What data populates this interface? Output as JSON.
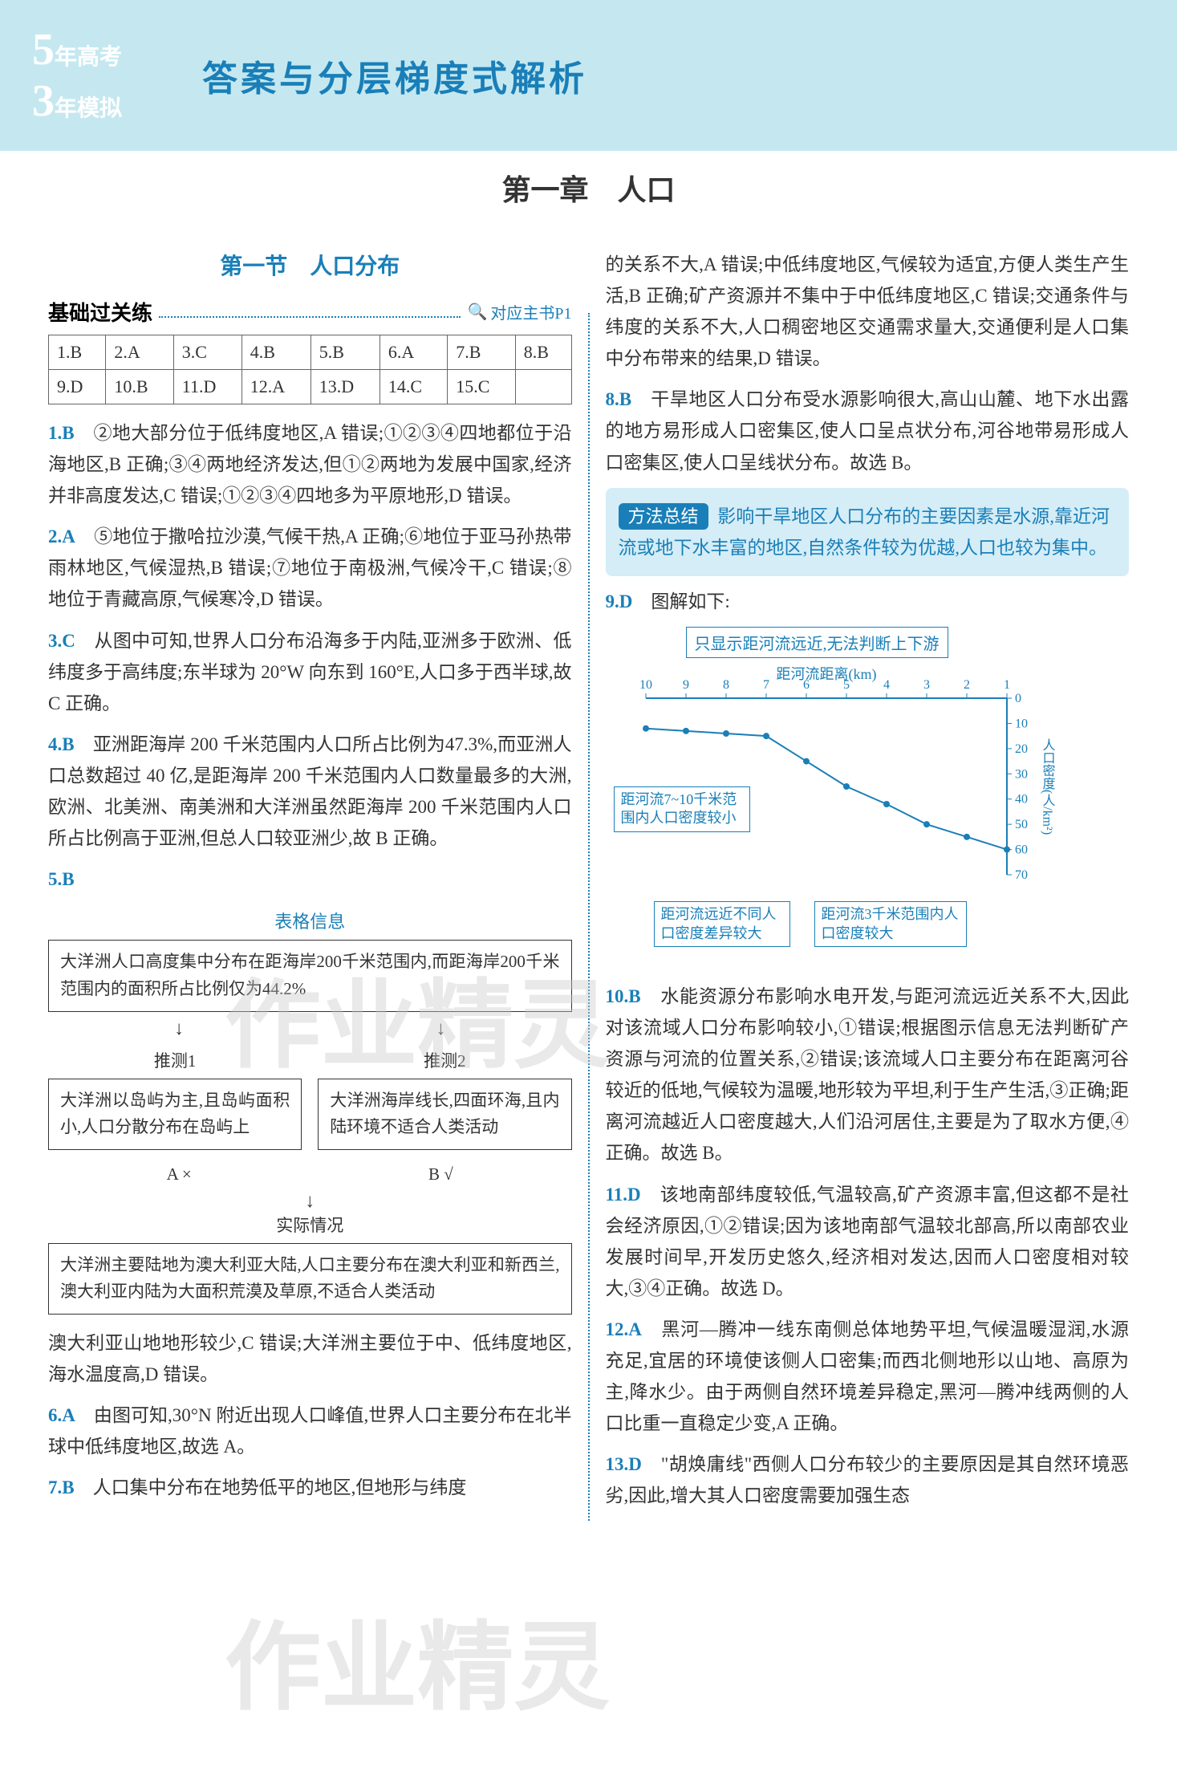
{
  "header": {
    "logo_5": "5",
    "logo_text1": "年高考",
    "logo_3": "3",
    "logo_text2": "年模拟",
    "title": "答案与分层梯度式解析"
  },
  "chapter": "第一章　人口",
  "section": "第一节　人口分布",
  "subsection": {
    "title": "基础过关练",
    "ref": "对应主书P1"
  },
  "answer_table": {
    "rows": [
      [
        "1.B",
        "2.A",
        "3.C",
        "4.B",
        "5.B",
        "6.A",
        "7.B",
        "8.B"
      ],
      [
        "9.D",
        "10.B",
        "11.D",
        "12.A",
        "13.D",
        "14.C",
        "15.C",
        ""
      ]
    ]
  },
  "left_explanations": [
    {
      "num": "1.B",
      "text": "②地大部分位于低纬度地区,A 错误;①②③④四地都位于沿海地区,B 正确;③④两地经济发达,但①②两地为发展中国家,经济并非高度发达,C 错误;①②③④四地多为平原地形,D 错误。"
    },
    {
      "num": "2.A",
      "text": "⑤地位于撒哈拉沙漠,气候干热,A 正确;⑥地位于亚马孙热带雨林地区,气候湿热,B 错误;⑦地位于南极洲,气候冷干,C 错误;⑧地位于青藏高原,气候寒冷,D 错误。"
    },
    {
      "num": "3.C",
      "text": "从图中可知,世界人口分布沿海多于内陆,亚洲多于欧洲、低纬度多于高纬度;东半球为 20°W 向东到 160°E,人口多于西半球,故 C 正确。"
    },
    {
      "num": "4.B",
      "text": "亚洲距海岸 200 千米范围内人口所占比例为47.3%,而亚洲人口总数超过 40 亿,是距海岸 200 千米范围内人口数量最多的大洲,欧洲、北美洲、南美洲和大洋洲虽然距海岸 200 千米范围内人口所占比例高于亚洲,但总人口较亚洲少,故 B 正确。"
    },
    {
      "num": "5.B",
      "text": ""
    }
  ],
  "diagram": {
    "title_label": "表格信息",
    "top_box": "大洋洲人口高度集中分布在距海岸200千米范围内,而距海岸200千米范围内的面积所占比例仅为44.2%",
    "infer1_label": "推测1",
    "infer1_text": "大洋洲以岛屿为主,且岛屿面积小,人口分散分布在岛屿上",
    "infer2_label": "推测2",
    "infer2_text": "大洋洲海岸线长,四面环海,且内陆环境不适合人类活动",
    "ax_a": "A ×",
    "ax_b": "B √",
    "reality_label": "实际情况",
    "reality_text": "大洋洲主要陆地为澳大利亚大陆,人口主要分布在澳大利亚和新西兰,澳大利亚内陆为大面积荒漠及草原,不适合人类活动"
  },
  "left_explanations_2": [
    {
      "num": "",
      "text": "澳大利亚山地地形较少,C 错误;大洋洲主要位于中、低纬度地区,海水温度高,D 错误。"
    },
    {
      "num": "6.A",
      "text": "由图可知,30°N 附近出现人口峰值,世界人口主要分布在北半球中低纬度地区,故选 A。"
    },
    {
      "num": "7.B",
      "text": "人口集中分布在地势低平的地区,但地形与纬度"
    }
  ],
  "right_explanations_1": [
    {
      "num": "",
      "text": "的关系不大,A 错误;中低纬度地区,气候较为适宜,方便人类生产生活,B 正确;矿产资源并不集中于中低纬度地区,C 错误;交通条件与纬度的关系不大,人口稠密地区交通需求量大,交通便利是人口集中分布带来的结果,D 错误。"
    },
    {
      "num": "8.B",
      "text": "干旱地区人口分布受水源影响很大,高山山麓、地下水出露的地方易形成人口密集区,使人口呈点状分布,河谷地带易形成人口密集区,使人口呈线状分布。故选 B。"
    }
  ],
  "method": {
    "tag": "方法总结",
    "text": "影响干旱地区人口分布的主要因素是水源,靠近河流或地下水丰富的地区,自然条件较为优越,人口也较为集中。"
  },
  "q9": {
    "num": "9.D",
    "text": "图解如下:"
  },
  "chart": {
    "top_note": "只显示距河流远近,无法判断上下游",
    "x_label": "距河流距离(km)",
    "y_label": "人口密度(人/km²)",
    "x_ticks": [
      "10",
      "9",
      "8",
      "7",
      "6",
      "5",
      "4",
      "3",
      "2",
      "1"
    ],
    "y_ticks": [
      "0",
      "10",
      "20",
      "30",
      "40",
      "50",
      "60",
      "70"
    ],
    "points": [
      {
        "x": 10,
        "y": 12
      },
      {
        "x": 9,
        "y": 13
      },
      {
        "x": 8,
        "y": 14
      },
      {
        "x": 7,
        "y": 15
      },
      {
        "x": 6,
        "y": 25
      },
      {
        "x": 5,
        "y": 35
      },
      {
        "x": 4,
        "y": 42
      },
      {
        "x": 3,
        "y": 50
      },
      {
        "x": 2,
        "y": 55
      },
      {
        "x": 1,
        "y": 60
      }
    ],
    "callout1": "距河流7~10千米范围内人口密度较小",
    "callout2": "距河流远近不同人口密度差异较大",
    "callout3": "距河流3千米范围内人口密度较大",
    "line_color": "#1a7fb8",
    "axis_color": "#1a7fb8"
  },
  "right_explanations_2": [
    {
      "num": "10.B",
      "text": "水能资源分布影响水电开发,与距河流远近关系不大,因此对该流域人口分布影响较小,①错误;根据图示信息无法判断矿产资源与河流的位置关系,②错误;该流域人口主要分布在距离河谷较近的低地,气候较为温暖,地形较为平坦,利于生产生活,③正确;距离河流越近人口密度越大,人们沿河居住,主要是为了取水方便,④正确。故选 B。"
    },
    {
      "num": "11.D",
      "text": "该地南部纬度较低,气温较高,矿产资源丰富,但这都不是社会经济原因,①②错误;因为该地南部气温较北部高,所以南部农业发展时间早,开发历史悠久,经济相对发达,因而人口密度相对较大,③④正确。故选 D。"
    },
    {
      "num": "12.A",
      "text": "黑河—腾冲一线东南侧总体地势平坦,气候温暖湿润,水源充足,宜居的环境使该侧人口密集;而西北侧地形以山地、高原为主,降水少。由于两侧自然环境差异稳定,黑河—腾冲线两侧的人口比重一直稳定少变,A 正确。"
    },
    {
      "num": "13.D",
      "text": "\"胡焕庸线\"西侧人口分布较少的主要原因是其自然环境恶劣,因此,增大其人口密度需要加强生态"
    }
  ],
  "watermarks": [
    "作业精灵",
    "作业精灵"
  ]
}
